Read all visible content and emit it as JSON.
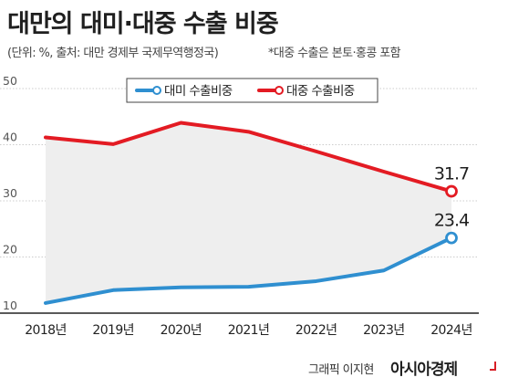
{
  "chart_data": {
    "type": "line",
    "title": "대만의 대미·대중 수출 비중",
    "subtitle": "(단위: %, 출처: 대만 경제부 국제무역행정국)",
    "note": "*대중 수출은 본토·홍콩 포함",
    "categories": [
      "2018년",
      "2019년",
      "2020년",
      "2021년",
      "2022년",
      "2023년",
      "2024년"
    ],
    "yticks": [
      "10",
      "20",
      "30",
      "40",
      "50"
    ],
    "ylim": [
      10,
      50
    ],
    "grid": true,
    "legend_position": "top-center",
    "series": [
      {
        "name": "대미 수출비중",
        "color": "#2f8fd0",
        "values": [
          11.8,
          14.1,
          14.6,
          14.7,
          15.7,
          17.6,
          23.4
        ],
        "end_label": "23.4"
      },
      {
        "name": "대중 수출비중",
        "color": "#e31b23",
        "values": [
          41.3,
          40.1,
          43.9,
          42.3,
          38.8,
          35.2,
          31.7
        ],
        "end_label": "31.7"
      }
    ]
  },
  "credit": "그래픽 이지현",
  "brand": "아시아경제"
}
